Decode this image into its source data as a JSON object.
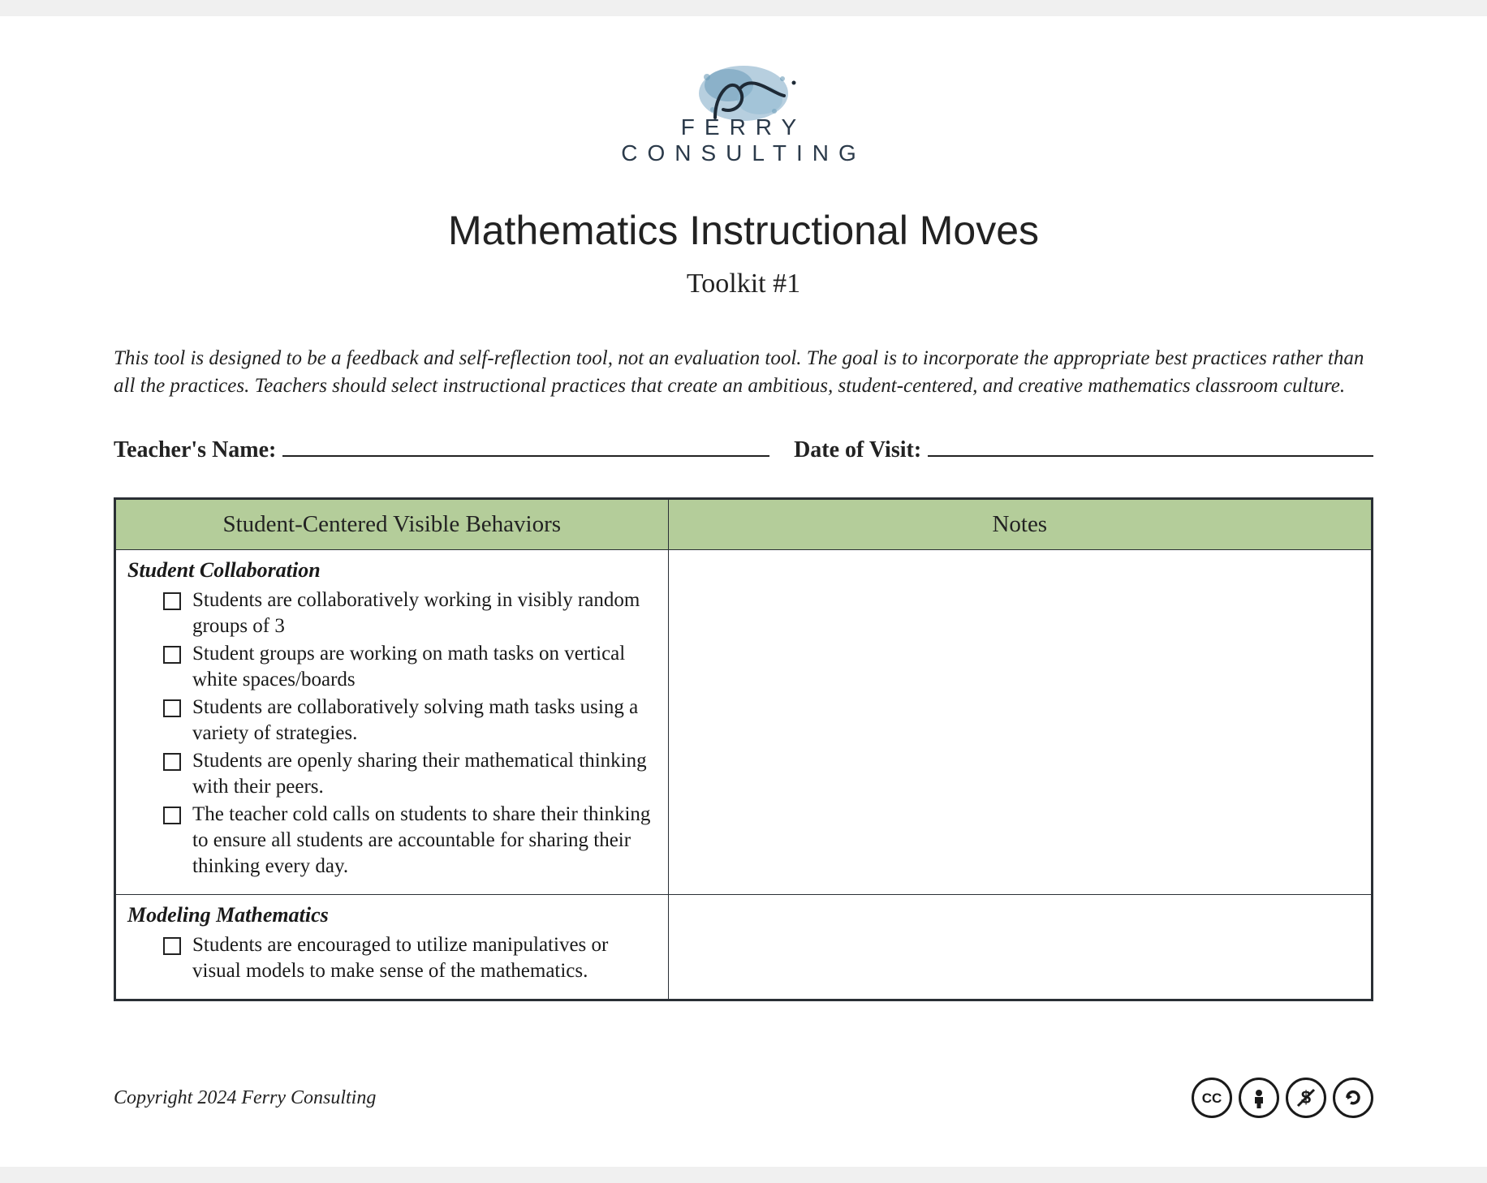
{
  "logo": {
    "brand_text": "FERRY CONSULTING",
    "splash_color": "#7ba8c4",
    "script_color": "#1e2a36"
  },
  "title": "Mathematics Instructional Moves",
  "subtitle": "Toolkit #1",
  "intro": "This tool is designed to be a feedback and self-reflection tool, not an evaluation tool.  The goal is to incorporate the appropriate best practices rather than all the practices. Teachers should select instructional practices that create an ambitious, student-centered, and creative mathematics classroom culture.",
  "fields": {
    "teacher_label": "Teacher's Name:",
    "teacher_value": "",
    "date_label": "Date of Visit:",
    "date_value": ""
  },
  "table": {
    "header_bg": "#b4cd9a",
    "border_color": "#2a2f35",
    "columns": [
      "Student-Centered Visible Behaviors",
      "Notes"
    ],
    "sections": [
      {
        "title": "Student Collaboration",
        "items": [
          "Students are collaboratively working in visibly random groups of 3",
          "Student groups are working on math tasks on vertical white spaces/boards",
          "Students are collaboratively solving math tasks using a variety of strategies.",
          "Students are openly sharing their mathematical thinking with their peers.",
          "The teacher cold calls on students to share their thinking to ensure all students are accountable for sharing their thinking every day."
        ],
        "notes": ""
      },
      {
        "title": "Modeling Mathematics",
        "items": [
          "Students are encouraged to utilize manipulatives or visual models to make sense of the mathematics."
        ],
        "notes": ""
      }
    ]
  },
  "footer": {
    "copyright": "Copyright 2024 Ferry Consulting",
    "cc": [
      "cc",
      "by",
      "nc",
      "sa"
    ]
  }
}
